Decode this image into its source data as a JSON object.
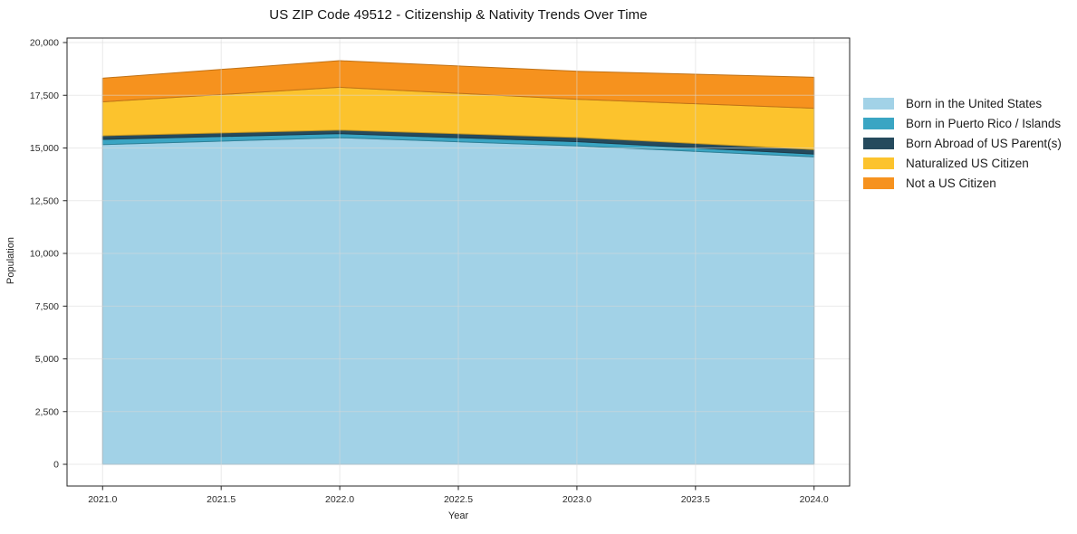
{
  "chart_data": {
    "type": "area",
    "stacked": true,
    "title": "US ZIP Code 49512 - Citizenship & Nativity Trends Over Time",
    "xlabel": "Year",
    "ylabel": "Population",
    "x": [
      2021,
      2022,
      2023,
      2024
    ],
    "series": [
      {
        "name": "Born in the United States",
        "color": "#a2d2e7",
        "values": [
          15160,
          15490,
          15100,
          14580
        ]
      },
      {
        "name": "Born in Puerto Rico / Islands",
        "color": "#3aa5c3",
        "values": [
          250,
          190,
          200,
          130
        ]
      },
      {
        "name": "Born Abroad of US Parent(s)",
        "color": "#254a5d",
        "values": [
          170,
          170,
          200,
          215
        ]
      },
      {
        "name": "Naturalized US Citizen",
        "color": "#fcc32d",
        "values": [
          1610,
          2030,
          1810,
          1960
        ]
      },
      {
        "name": "Not a US Citizen",
        "color": "#f6921e",
        "values": [
          1120,
          1260,
          1330,
          1470
        ]
      }
    ],
    "totals": [
      18310,
      19140,
      18640,
      18355
    ],
    "xticks": {
      "values": [
        2021,
        2021.5,
        2022,
        2022.5,
        2023,
        2023.5,
        2024
      ],
      "labels": [
        "2021.0",
        "2021.5",
        "2022.0",
        "2022.5",
        "2023.0",
        "2023.5",
        "2024.0"
      ]
    },
    "yticks": {
      "values": [
        0,
        2500,
        5000,
        7500,
        10000,
        12500,
        15000,
        17500,
        20000
      ],
      "labels": [
        "0",
        "2,500",
        "5,000",
        "7,500",
        "10,000",
        "12,500",
        "15,000",
        "17,500",
        "20,000"
      ]
    },
    "xlim": [
      2020.85,
      2024.15
    ],
    "ylim": [
      -1030,
      20215
    ],
    "grid": true,
    "legend_position": "right",
    "grid_color": "#d9d9d9",
    "axis_color": "#262626"
  }
}
